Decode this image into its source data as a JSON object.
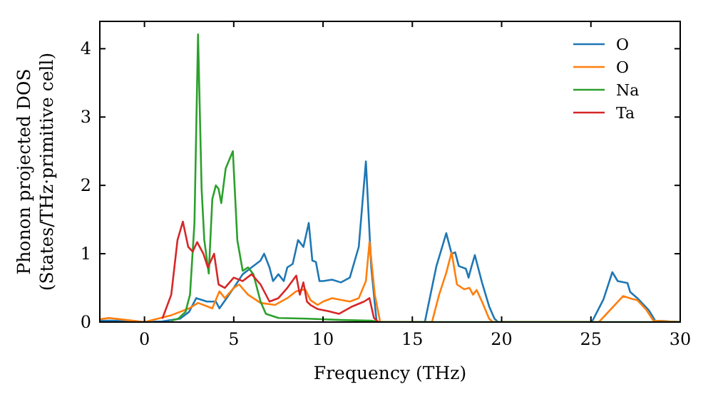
{
  "chart_data": {
    "type": "line",
    "xlabel": "Frequency (THz)",
    "ylabel": "Phonon projected DOS\n(States/THz·primitive cell)",
    "xlim": [
      -2.5,
      30
    ],
    "ylim": [
      0,
      4.4
    ],
    "xticks": [
      0,
      5,
      10,
      15,
      20,
      25,
      30
    ],
    "yticks": [
      0,
      1,
      2,
      3,
      4
    ],
    "legend": "top right",
    "grid": false,
    "series": [
      {
        "name": "O",
        "color": "#1f77b4",
        "x": [
          -2.5,
          -1,
          0,
          1,
          2,
          2.5,
          2.9,
          3.5,
          4.0,
          4.2,
          4.6,
          5.0,
          5.5,
          6.0,
          6.5,
          6.7,
          7.0,
          7.2,
          7.5,
          7.8,
          8.0,
          8.3,
          8.6,
          8.9,
          9.2,
          9.4,
          9.6,
          9.8,
          10.0,
          10.5,
          11.0,
          11.5,
          12.0,
          12.4,
          12.7,
          13.0,
          13.3,
          15.7,
          16.35,
          16.9,
          17.2,
          17.4,
          17.6,
          18.0,
          18.15,
          18.3,
          18.5,
          18.9,
          19.3,
          19.6,
          19.8,
          25.05,
          25.7,
          26.2,
          26.5,
          27.05,
          27.2,
          27.6,
          28.25,
          28.6,
          30
        ],
        "values": [
          0.02,
          0.02,
          0,
          0.01,
          0.05,
          0.15,
          0.35,
          0.3,
          0.3,
          0.2,
          0.35,
          0.5,
          0.7,
          0.8,
          0.9,
          1.0,
          0.8,
          0.6,
          0.7,
          0.6,
          0.8,
          0.85,
          1.2,
          1.1,
          1.45,
          0.9,
          0.88,
          0.6,
          0.6,
          0.62,
          0.58,
          0.65,
          1.1,
          2.35,
          0.8,
          0,
          0,
          0,
          0.82,
          1.3,
          1.0,
          1.02,
          0.82,
          0.78,
          0.65,
          0.8,
          0.98,
          0.58,
          0.23,
          0.05,
          0,
          0,
          0.33,
          0.73,
          0.6,
          0.57,
          0.44,
          0.35,
          0.17,
          0.02,
          0
        ]
      },
      {
        "name": "O",
        "color": "#ff7f0e",
        "x": [
          -2.5,
          -2,
          -1,
          0,
          1.5,
          2.5,
          3.0,
          3.8,
          4.2,
          4.5,
          5.0,
          5.3,
          5.8,
          6.5,
          7.3,
          8.0,
          8.5,
          9.0,
          9.3,
          9.7,
          10.0,
          10.5,
          11.5,
          12.0,
          12.4,
          12.6,
          12.9,
          13.2,
          16.1,
          16.5,
          16.9,
          17.2,
          17.5,
          17.9,
          18.2,
          18.4,
          18.6,
          18.9,
          19.3,
          19.5,
          25.45,
          26.8,
          27.3,
          27.6,
          28.1,
          28.5,
          30
        ],
        "values": [
          0.04,
          0.06,
          0.03,
          0,
          0.1,
          0.2,
          0.28,
          0.2,
          0.45,
          0.35,
          0.5,
          0.55,
          0.4,
          0.28,
          0.25,
          0.35,
          0.45,
          0.48,
          0.32,
          0.25,
          0.3,
          0.35,
          0.3,
          0.35,
          0.6,
          1.17,
          0.4,
          0,
          0,
          0.4,
          0.72,
          1.02,
          0.55,
          0.48,
          0.5,
          0.4,
          0.47,
          0.3,
          0.05,
          0,
          0,
          0.38,
          0.34,
          0.32,
          0.18,
          0.02,
          0
        ]
      },
      {
        "name": "Na",
        "color": "#2ca02c",
        "x": [
          1.5,
          1.9,
          2.3,
          2.55,
          2.8,
          3.0,
          3.2,
          3.35,
          3.6,
          3.8,
          4.0,
          4.15,
          4.3,
          4.55,
          4.95,
          5.2,
          5.5,
          5.8,
          6.1,
          6.5,
          6.8,
          7.5,
          9.1,
          11.0,
          12.7,
          13.2,
          30
        ],
        "values": [
          0.02,
          0.05,
          0.15,
          0.4,
          1.45,
          4.21,
          1.95,
          1.2,
          0.71,
          1.8,
          2.0,
          1.95,
          1.74,
          2.25,
          2.5,
          1.2,
          0.75,
          0.8,
          0.7,
          0.3,
          0.12,
          0.06,
          0.05,
          0.03,
          0.02,
          0,
          0
        ]
      },
      {
        "name": "Ta",
        "color": "#d62728",
        "x": [
          1,
          1.5,
          1.85,
          2.15,
          2.45,
          2.7,
          2.95,
          3.3,
          3.55,
          3.9,
          4.15,
          4.5,
          5.0,
          5.5,
          6.0,
          6.5,
          7.0,
          7.5,
          8.0,
          8.5,
          8.7,
          8.9,
          9.1,
          9.3,
          9.7,
          10.3,
          10.9,
          11.65,
          12.3,
          12.6,
          12.85,
          13.1
        ],
        "values": [
          0.05,
          0.4,
          1.2,
          1.47,
          1.1,
          1.03,
          1.17,
          1.0,
          0.8,
          1.0,
          0.55,
          0.5,
          0.65,
          0.6,
          0.7,
          0.55,
          0.3,
          0.35,
          0.5,
          0.68,
          0.4,
          0.58,
          0.3,
          0.25,
          0.19,
          0.16,
          0.12,
          0.23,
          0.3,
          0.35,
          0.06,
          0
        ]
      }
    ]
  }
}
